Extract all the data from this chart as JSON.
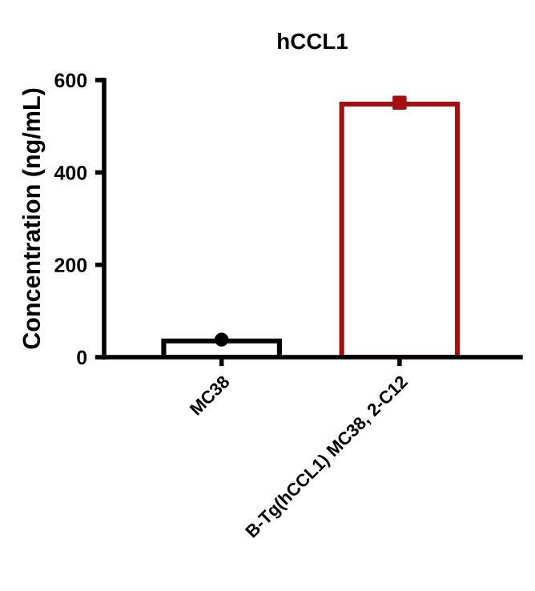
{
  "chart_data": {
    "type": "bar",
    "title": "hCCL1",
    "ylabel": "Concentration (ng/mL)",
    "categories": [
      "MC38",
      "B-Tg(hCCL1) MC38, 2-C12"
    ],
    "series": [
      {
        "values": [
          35,
          548
        ],
        "colors": [
          "#000000",
          "#a50f0f"
        ]
      },
      {
        "type": "scatter",
        "x": [
          "MC38"
        ],
        "values": [
          38
        ],
        "color": "#000000",
        "marker": "circle"
      },
      {
        "type": "scatter",
        "x": [
          "B-Tg(hCCL1) MC38, 2-C12"
        ],
        "values": [
          551
        ],
        "color": "#a50f0f",
        "marker": "square"
      }
    ],
    "ylim": [
      0,
      600
    ],
    "yticks": [
      0,
      200,
      400,
      600
    ],
    "grid": false,
    "legend": false
  }
}
